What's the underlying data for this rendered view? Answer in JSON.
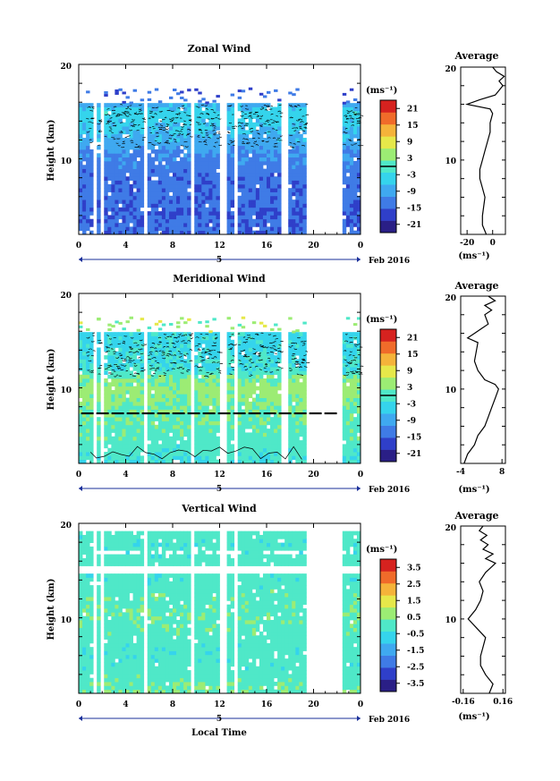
{
  "colors": {
    "colormap": [
      "#2a1f86",
      "#2f3fc9",
      "#3f7be6",
      "#3fa9f0",
      "#35d4ec",
      "#4fe8c8",
      "#9cec74",
      "#e6e84a",
      "#f5b33a",
      "#f06b2a",
      "#d6221f"
    ],
    "contour": "#000000",
    "line": "#000000",
    "axis_end_marker": "#1a2f9a"
  },
  "chart_data": [
    {
      "type": "heatmap",
      "title": "Zonal Wind",
      "ylabel": "Height (km)",
      "xlabel": "",
      "x_ticks": [
        "0",
        "4",
        "8",
        "12",
        "16",
        "20",
        "0"
      ],
      "x_range": [
        0,
        24
      ],
      "y_ticks": [
        "20",
        "10"
      ],
      "y_range": [
        2,
        20
      ],
      "date_label": "Feb 2016",
      "day_label": "5",
      "colorbar": {
        "unit": "(ms⁻¹)",
        "ticks": [
          "21",
          "15",
          "9",
          "3",
          "-3",
          "-9",
          "-15",
          "-21"
        ],
        "range": [
          -24,
          24
        ],
        "highlight": 0
      },
      "gaps_hours": [
        [
          1.1,
          1.5
        ],
        [
          1.8,
          2.3
        ],
        [
          5.5,
          5.9
        ],
        [
          9.6,
          10.0
        ],
        [
          12.1,
          12.5
        ],
        [
          13.2,
          13.5
        ],
        [
          17.3,
          17.7
        ],
        [
          19.4,
          22.4
        ]
      ],
      "data_top_km": 16.0,
      "data_bottom_km": 2.0,
      "value_profile_km": [
        [
          2,
          -14
        ],
        [
          4,
          -15
        ],
        [
          6,
          -14
        ],
        [
          8,
          -14
        ],
        [
          10,
          -12
        ],
        [
          12,
          -8
        ],
        [
          14,
          -5
        ],
        [
          15,
          -4
        ],
        [
          16,
          -10
        ],
        [
          17,
          -20
        ]
      ],
      "contours": [
        "dense contouring between about 11 and 16 km"
      ],
      "average_profile": {
        "title": "Average",
        "xlabel": "(ms⁻¹)",
        "x_ticks": [
          "-20",
          "0"
        ],
        "x_range": [
          -25,
          10
        ],
        "y_ticks": [
          "20",
          "10"
        ],
        "y_range": [
          2,
          20
        ],
        "points": [
          [
            -5,
            2
          ],
          [
            -8,
            3
          ],
          [
            -8,
            4
          ],
          [
            -7,
            5
          ],
          [
            -6,
            6
          ],
          [
            -8,
            7
          ],
          [
            -10,
            8
          ],
          [
            -10,
            9
          ],
          [
            -8,
            10
          ],
          [
            -6,
            11
          ],
          [
            -4,
            12
          ],
          [
            -2,
            13
          ],
          [
            -2,
            14
          ],
          [
            0,
            15
          ],
          [
            -2,
            15.5
          ],
          [
            -20,
            16
          ],
          [
            -10,
            16.5
          ],
          [
            2,
            17
          ],
          [
            5,
            17.5
          ],
          [
            8,
            18
          ],
          [
            5,
            18.5
          ],
          [
            9,
            19
          ],
          [
            3,
            19.5
          ],
          [
            0,
            20
          ]
        ]
      }
    },
    {
      "type": "heatmap",
      "title": "Meridional Wind",
      "ylabel": "Height (km)",
      "xlabel": "",
      "x_ticks": [
        "0",
        "4",
        "8",
        "12",
        "16",
        "20",
        "0"
      ],
      "x_range": [
        0,
        24
      ],
      "y_ticks": [
        "20",
        "10"
      ],
      "y_range": [
        2,
        20
      ],
      "date_label": "Feb 2016",
      "day_label": "5",
      "colorbar": {
        "unit": "(ms⁻¹)",
        "ticks": [
          "21",
          "15",
          "9",
          "3",
          "-3",
          "-9",
          "-15",
          "-21"
        ],
        "range": [
          -24,
          24
        ],
        "highlight": 0
      },
      "gaps_hours": [
        [
          1.1,
          1.5
        ],
        [
          1.8,
          2.3
        ],
        [
          5.5,
          5.9
        ],
        [
          9.6,
          10.0
        ],
        [
          12.1,
          12.5
        ],
        [
          13.2,
          13.5
        ],
        [
          17.3,
          17.7
        ],
        [
          19.4,
          22.4
        ]
      ],
      "data_top_km": 16.0,
      "data_bottom_km": 2.0,
      "value_profile_km": [
        [
          2,
          -2
        ],
        [
          4,
          0
        ],
        [
          6,
          1
        ],
        [
          8,
          2
        ],
        [
          10,
          4
        ],
        [
          11,
          2
        ],
        [
          12,
          -2
        ],
        [
          14,
          -3
        ],
        [
          16,
          -4
        ]
      ],
      "contours": [
        "dense contouring between about 11 and 16 km",
        "line near 7 km"
      ],
      "average_profile": {
        "title": "Average",
        "xlabel": "(ms⁻¹)",
        "x_ticks": [
          "-4",
          "8"
        ],
        "x_range": [
          -4,
          9
        ],
        "y_ticks": [
          "20",
          "10"
        ],
        "y_range": [
          2,
          20
        ],
        "points": [
          [
            -3,
            2
          ],
          [
            -2,
            3
          ],
          [
            0,
            4
          ],
          [
            1,
            5
          ],
          [
            3,
            6
          ],
          [
            4,
            7
          ],
          [
            5,
            8
          ],
          [
            6,
            9
          ],
          [
            7,
            10
          ],
          [
            6,
            10.5
          ],
          [
            3,
            11
          ],
          [
            1,
            12
          ],
          [
            0,
            13
          ],
          [
            0.5,
            14
          ],
          [
            1,
            15
          ],
          [
            -2,
            15.5
          ],
          [
            0,
            16
          ],
          [
            2,
            16.5
          ],
          [
            4,
            17
          ],
          [
            3,
            18
          ],
          [
            5,
            18.5
          ],
          [
            3,
            19
          ],
          [
            6,
            19.5
          ],
          [
            4,
            20
          ]
        ]
      }
    },
    {
      "type": "heatmap",
      "title": "Vertical Wind",
      "ylabel": "Height (km)",
      "xlabel": "Local Time",
      "x_ticks": [
        "0",
        "4",
        "8",
        "12",
        "16",
        "20",
        "0"
      ],
      "x_range": [
        0,
        24
      ],
      "y_ticks": [
        "20",
        "10"
      ],
      "y_range": [
        2,
        20
      ],
      "date_label": "Feb 2016",
      "day_label": "5",
      "colorbar": {
        "unit": "(ms⁻¹)",
        "ticks": [
          "3.5",
          "2.5",
          "1.5",
          "0.5",
          "-0.5",
          "-1.5",
          "-2.5",
          "-3.5"
        ],
        "range": [
          -4,
          4
        ],
        "highlight": null
      },
      "gaps_hours": [
        [
          1.1,
          1.5
        ],
        [
          1.8,
          2.3
        ],
        [
          5.5,
          5.9
        ],
        [
          9.6,
          10.0
        ],
        [
          12.1,
          12.5
        ],
        [
          13.2,
          13.5
        ],
        [
          19.4,
          22.4
        ]
      ],
      "data_top_km": 19.0,
      "data_bottom_km": 2.0,
      "value_profile_km": [
        [
          2,
          0.3
        ],
        [
          4,
          0
        ],
        [
          6,
          -0.1
        ],
        [
          8,
          0
        ],
        [
          10,
          0.2
        ],
        [
          12,
          0.1
        ],
        [
          14,
          -0.1
        ],
        [
          16,
          0
        ],
        [
          18,
          -0.1
        ],
        [
          19,
          0
        ]
      ],
      "contours": [],
      "average_profile": {
        "title": "Average",
        "xlabel": "(ms⁻¹)",
        "x_ticks": [
          "-0.16",
          "0.16"
        ],
        "x_range": [
          -0.18,
          0.18
        ],
        "y_ticks": [
          "20",
          "10"
        ],
        "y_range": [
          2,
          20
        ],
        "points": [
          [
            0.05,
            2
          ],
          [
            0.08,
            3
          ],
          [
            0.02,
            4
          ],
          [
            -0.02,
            5
          ],
          [
            -0.02,
            6
          ],
          [
            0.0,
            7
          ],
          [
            0.02,
            8
          ],
          [
            -0.05,
            9
          ],
          [
            -0.12,
            10
          ],
          [
            -0.06,
            11
          ],
          [
            -0.02,
            12
          ],
          [
            0.0,
            13
          ],
          [
            -0.03,
            14
          ],
          [
            0.02,
            15
          ],
          [
            0.06,
            15.5
          ],
          [
            0.1,
            16
          ],
          [
            0.02,
            16.5
          ],
          [
            0.08,
            17
          ],
          [
            0.0,
            17.5
          ],
          [
            0.04,
            18
          ],
          [
            -0.02,
            18.5
          ],
          [
            0.03,
            19
          ],
          [
            -0.03,
            19.5
          ],
          [
            0.0,
            20
          ]
        ]
      }
    }
  ]
}
